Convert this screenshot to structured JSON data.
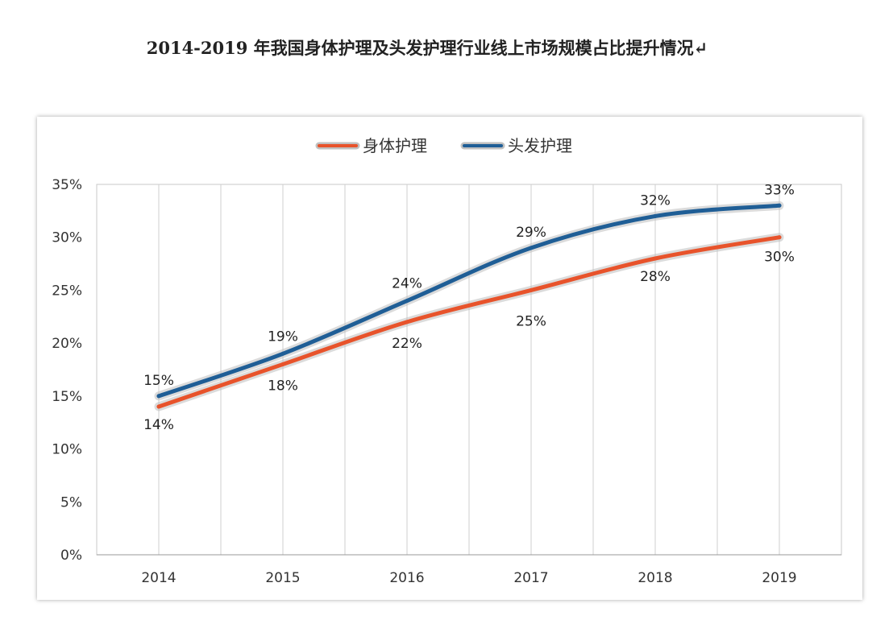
{
  "title": "2014-2019 年我国身体护理及头发护理行业线上市场规模占比提升情况↵",
  "chart_data": {
    "type": "line",
    "categories": [
      "2014",
      "2015",
      "2016",
      "2017",
      "2018",
      "2019"
    ],
    "series": [
      {
        "name": "身体护理",
        "values": [
          14,
          18,
          22,
          25,
          28,
          30
        ],
        "color": "#e8532b",
        "labels": [
          "14%",
          "18%",
          "22%",
          "25%",
          "28%",
          "30%"
        ]
      },
      {
        "name": "头发护理",
        "values": [
          15,
          19,
          24,
          29,
          32,
          33
        ],
        "color": "#1f5e96",
        "labels": [
          "15%",
          "19%",
          "24%",
          "29%",
          "32%",
          "33%"
        ]
      }
    ],
    "yticks": [
      "0%",
      "5%",
      "10%",
      "15%",
      "20%",
      "25%",
      "30%",
      "35%"
    ],
    "ylim": [
      0,
      35
    ],
    "grid": true,
    "legend": "top-center"
  }
}
